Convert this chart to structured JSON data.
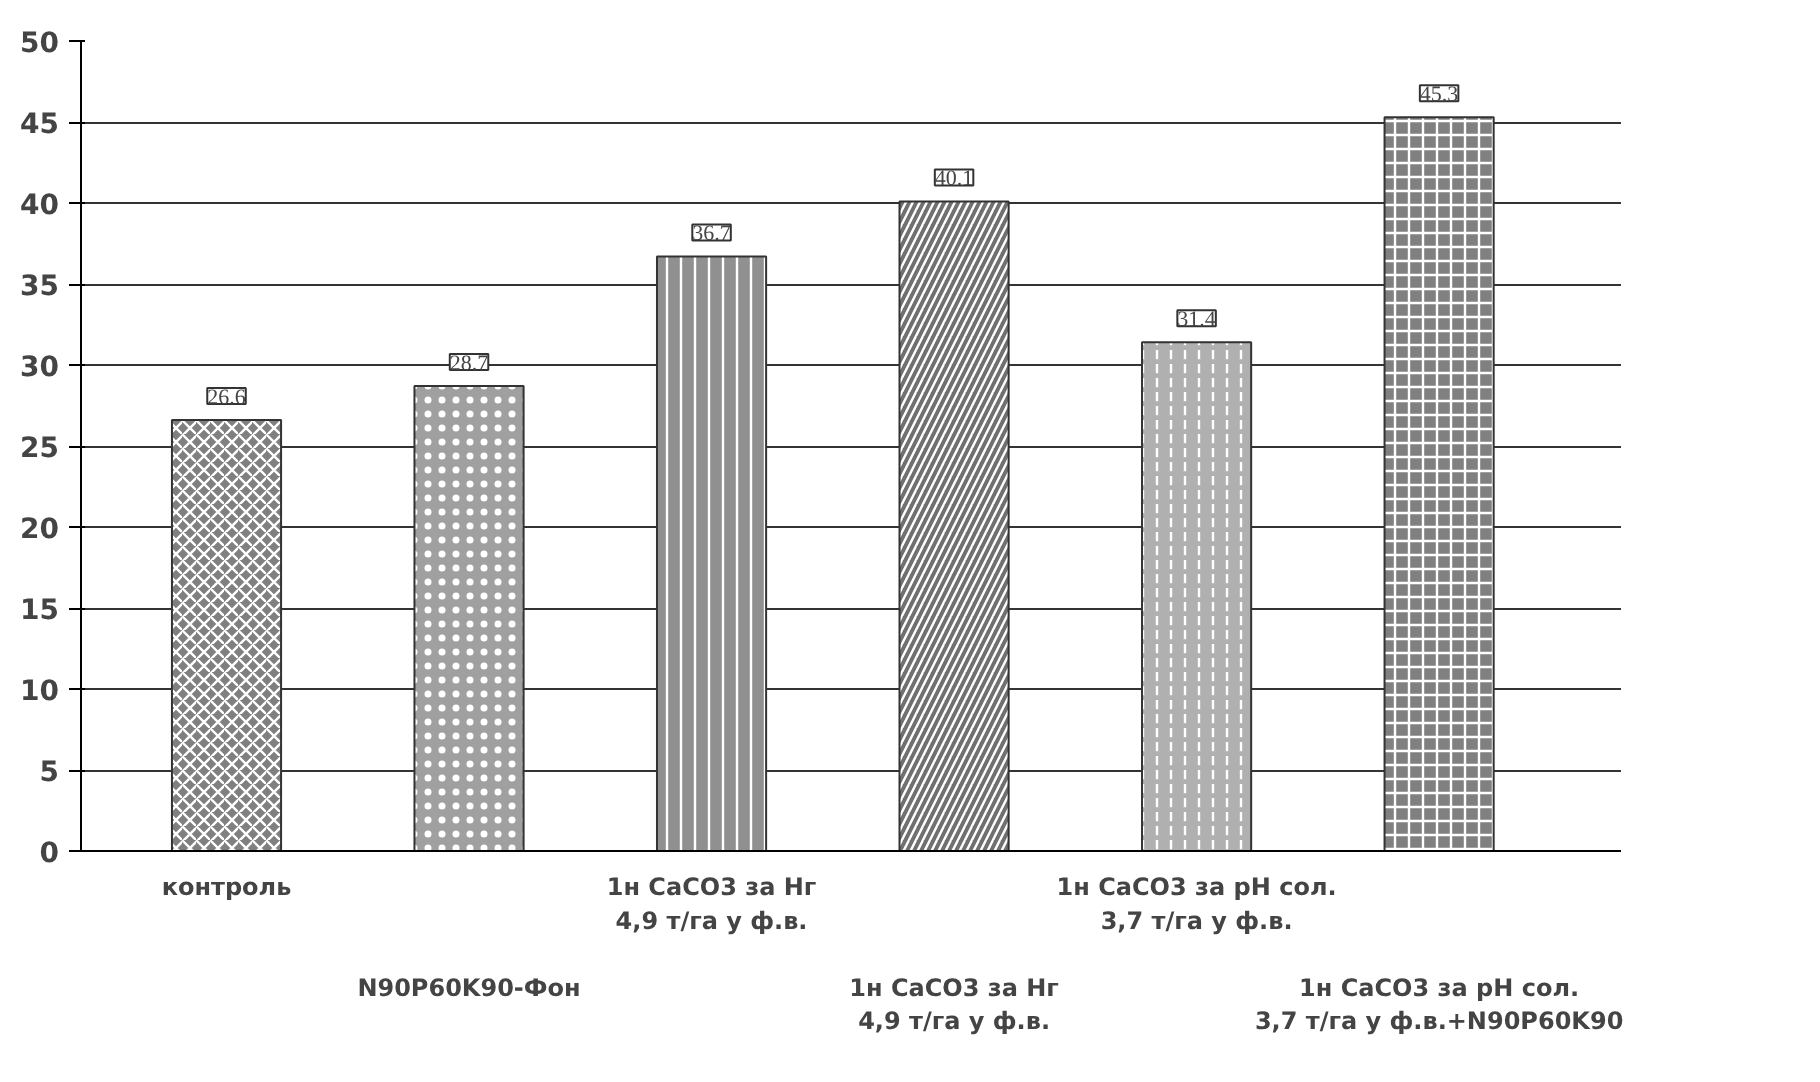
{
  "chart_data": {
    "type": "bar",
    "categories": [
      "контроль",
      "N90P60K90-Фон",
      "1н CaCO3 за Hг\n4,9 т/га у ф.в.",
      "1н CaCO3 за Hг\n4,9 т/га у ф.в.",
      "1н CaCO3 за pH сол.\n3,7 т/га у ф.в.",
      "1н CaCO3 за pH сол.\n3,7 т/га у ф.в.+N90P60K90"
    ],
    "values": [
      26.6,
      28.7,
      36.7,
      40.1,
      31.4,
      45.3
    ],
    "colors": [
      "#808080",
      "#a0a0a0",
      "#909090",
      "#707070",
      "#b0b0b0",
      "#808080"
    ],
    "ylim": [
      0,
      50
    ],
    "yticks": [
      0,
      5,
      10,
      15,
      20,
      25,
      30,
      35,
      40,
      45,
      50
    ],
    "grid": "y",
    "data_labels": true
  }
}
